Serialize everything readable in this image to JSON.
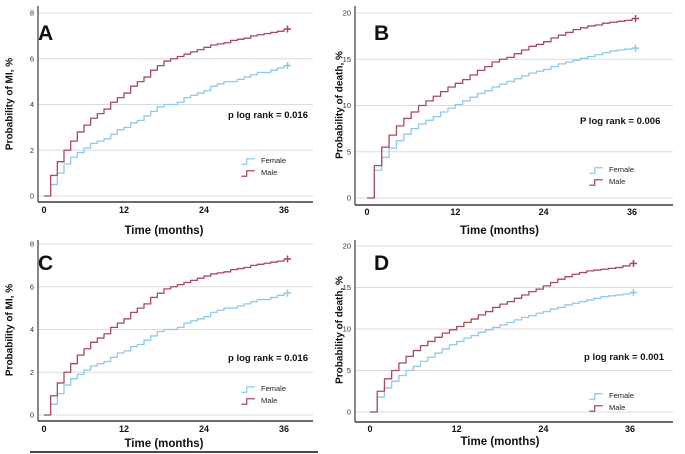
{
  "figure": {
    "colors": {
      "female": "#8FC9EE",
      "male": "#A84A66",
      "grid": "#DBDBDB",
      "axis": "#3A3A3A",
      "text": "#111111"
    },
    "legend": {
      "female_label": "Female",
      "male_label": "Male"
    },
    "x_months": [
      0,
      1,
      2,
      3,
      4,
      5,
      6,
      7,
      8,
      9,
      10,
      11,
      12,
      13,
      14,
      15,
      16,
      17,
      18,
      19,
      20,
      21,
      22,
      23,
      24,
      25,
      26,
      27,
      28,
      29,
      30,
      31,
      32,
      33,
      34,
      35,
      36
    ]
  },
  "chart_data": [
    {
      "type": "line",
      "panel": "A",
      "ylabel": "Probability of MI, %",
      "xlabel": "Time (months)",
      "ylim": [
        0,
        8
      ],
      "yticks": [
        0,
        2,
        4,
        6,
        8
      ],
      "x_ticks": [
        0,
        12,
        24,
        36
      ],
      "p_label": "p log rank = 0.016",
      "legend_position": "right-lower",
      "grid": "horizontal",
      "series": [
        {
          "name": "Female",
          "values": [
            0,
            0.5,
            1.0,
            1.4,
            1.7,
            1.9,
            2.1,
            2.3,
            2.4,
            2.5,
            2.7,
            2.9,
            3.0,
            3.2,
            3.3,
            3.5,
            3.7,
            3.9,
            4.0,
            4.0,
            4.1,
            4.3,
            4.4,
            4.5,
            4.6,
            4.8,
            4.9,
            5.0,
            5.0,
            5.1,
            5.2,
            5.3,
            5.4,
            5.4,
            5.5,
            5.6,
            5.7
          ]
        },
        {
          "name": "Male",
          "values": [
            0,
            0.9,
            1.5,
            2.0,
            2.4,
            2.8,
            3.1,
            3.4,
            3.6,
            3.8,
            4.1,
            4.3,
            4.5,
            4.8,
            5.0,
            5.2,
            5.5,
            5.7,
            5.9,
            6.0,
            6.1,
            6.2,
            6.3,
            6.4,
            6.5,
            6.6,
            6.65,
            6.7,
            6.8,
            6.85,
            6.9,
            7.0,
            7.05,
            7.1,
            7.15,
            7.2,
            7.3
          ]
        }
      ]
    },
    {
      "type": "line",
      "panel": "B",
      "ylabel": "Probability of death, %",
      "xlabel": "Time (months)",
      "ylim": [
        0,
        20
      ],
      "yticks": [
        0,
        5,
        10,
        15,
        20
      ],
      "x_ticks": [
        0,
        12,
        24,
        36
      ],
      "p_label": "P log rank = 0.006",
      "legend_position": "right-lower",
      "grid": "horizontal",
      "series": [
        {
          "name": "Female",
          "values": [
            0,
            3.0,
            4.4,
            5.4,
            6.2,
            6.9,
            7.5,
            8.0,
            8.4,
            8.8,
            9.3,
            9.7,
            10.1,
            10.5,
            10.9,
            11.3,
            11.6,
            12.0,
            12.3,
            12.6,
            12.9,
            13.2,
            13.5,
            13.7,
            13.9,
            14.2,
            14.5,
            14.7,
            14.9,
            15.1,
            15.3,
            15.5,
            15.7,
            15.9,
            16.0,
            16.1,
            16.2
          ]
        },
        {
          "name": "Male",
          "values": [
            0,
            3.5,
            5.5,
            6.8,
            7.8,
            8.6,
            9.3,
            10.0,
            10.5,
            11.0,
            11.5,
            12.0,
            12.4,
            12.8,
            13.3,
            13.8,
            14.2,
            14.7,
            15.0,
            15.2,
            15.6,
            16.0,
            16.4,
            16.6,
            16.9,
            17.3,
            17.6,
            17.9,
            18.2,
            18.4,
            18.6,
            18.7,
            18.9,
            19.0,
            19.1,
            19.2,
            19.4
          ]
        }
      ]
    },
    {
      "type": "line",
      "panel": "C",
      "ylabel": "Probability of MI, %",
      "xlabel": "Time (months)",
      "ylim": [
        0,
        8
      ],
      "yticks": [
        0,
        2,
        4,
        6,
        8
      ],
      "x_ticks": [
        0,
        12,
        24,
        36
      ],
      "p_label": "p log rank = 0.016",
      "legend_position": "right-lower",
      "grid": "horizontal",
      "series": [
        {
          "name": "Female",
          "values": [
            0,
            0.5,
            1.0,
            1.4,
            1.7,
            1.9,
            2.1,
            2.3,
            2.4,
            2.5,
            2.7,
            2.9,
            3.0,
            3.2,
            3.3,
            3.5,
            3.7,
            3.9,
            4.0,
            4.0,
            4.1,
            4.3,
            4.4,
            4.5,
            4.6,
            4.8,
            4.9,
            5.0,
            5.0,
            5.1,
            5.2,
            5.3,
            5.4,
            5.4,
            5.5,
            5.6,
            5.7
          ]
        },
        {
          "name": "Male",
          "values": [
            0,
            0.9,
            1.5,
            2.0,
            2.4,
            2.8,
            3.1,
            3.4,
            3.6,
            3.8,
            4.1,
            4.3,
            4.5,
            4.8,
            5.0,
            5.2,
            5.5,
            5.7,
            5.9,
            6.0,
            6.1,
            6.2,
            6.3,
            6.4,
            6.5,
            6.6,
            6.65,
            6.7,
            6.8,
            6.85,
            6.9,
            7.0,
            7.05,
            7.1,
            7.15,
            7.2,
            7.3
          ]
        }
      ]
    },
    {
      "type": "line",
      "panel": "D",
      "ylabel": "Probability of death, %",
      "xlabel": "Time (months)",
      "ylim": [
        0,
        20
      ],
      "yticks": [
        0,
        5,
        10,
        15,
        20
      ],
      "x_ticks": [
        0,
        12,
        24,
        36
      ],
      "p_label": "p log rank = 0.001",
      "legend_position": "right-lower",
      "grid": "horizontal",
      "series": [
        {
          "name": "Female",
          "values": [
            0,
            1.8,
            2.9,
            3.7,
            4.4,
            5.0,
            5.5,
            6.1,
            6.6,
            7.1,
            7.6,
            8.1,
            8.5,
            8.9,
            9.2,
            9.6,
            9.9,
            10.2,
            10.5,
            10.8,
            11.1,
            11.4,
            11.6,
            11.9,
            12.1,
            12.4,
            12.6,
            12.9,
            13.1,
            13.3,
            13.5,
            13.7,
            13.9,
            14.0,
            14.1,
            14.2,
            14.4
          ]
        },
        {
          "name": "Male",
          "values": [
            0,
            2.5,
            4.0,
            5.0,
            5.9,
            6.7,
            7.4,
            8.0,
            8.5,
            9.0,
            9.5,
            9.9,
            10.3,
            10.8,
            11.2,
            11.7,
            12.1,
            12.6,
            13.0,
            13.3,
            13.7,
            14.1,
            14.5,
            14.8,
            15.2,
            15.6,
            16.0,
            16.3,
            16.6,
            16.8,
            17.0,
            17.1,
            17.2,
            17.3,
            17.4,
            17.6,
            17.9
          ]
        }
      ]
    }
  ]
}
